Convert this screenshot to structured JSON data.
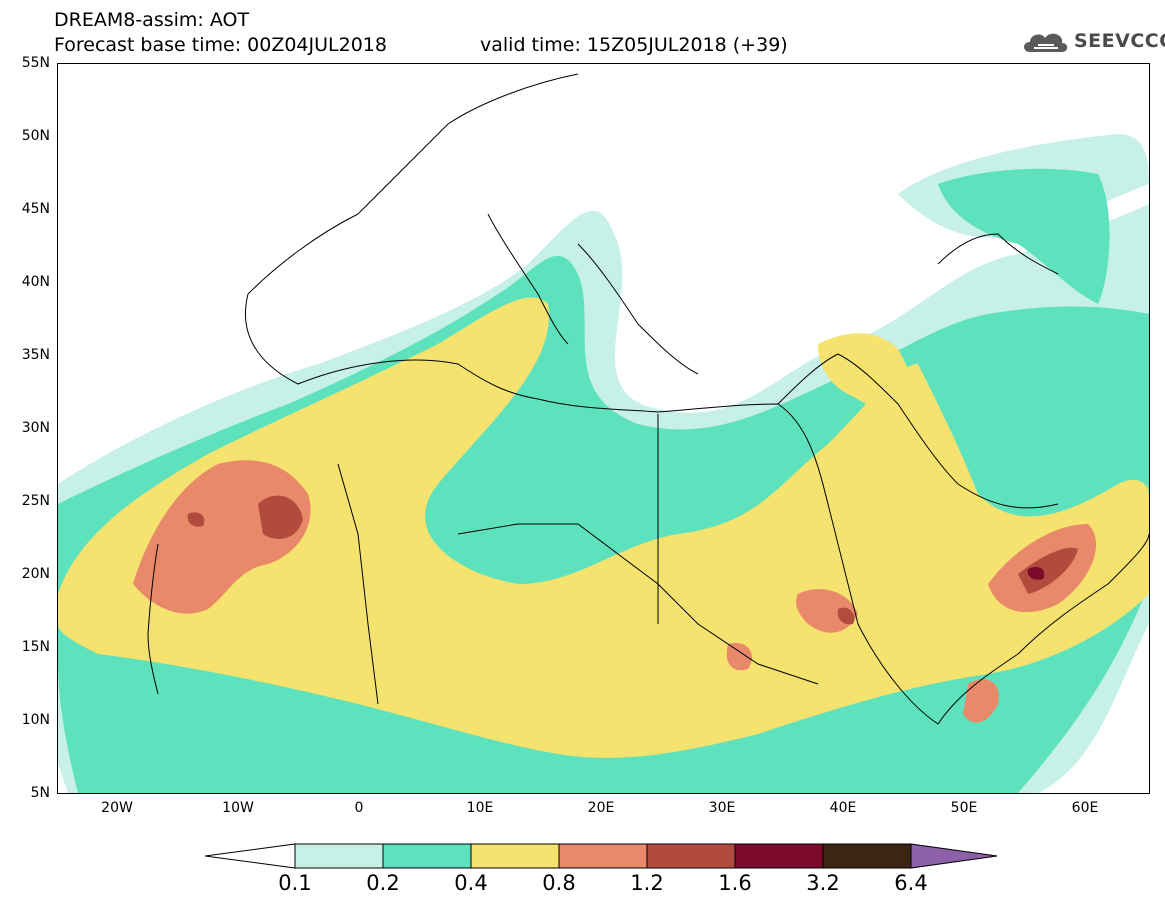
{
  "header": {
    "model_title": "DREAM8-assim: AOT",
    "forecast_base": "Forecast base time: 00Z04JUL2018",
    "valid_time": "valid time: 15Z05JUL2018 (+39)"
  },
  "logo": {
    "text": "SEEVCCC",
    "icon": "cloud-icon"
  },
  "axes": {
    "lat_ticks": [
      "55N",
      "50N",
      "45N",
      "40N",
      "35N",
      "30N",
      "25N",
      "20N",
      "15N",
      "10N",
      "5N"
    ],
    "lon_ticks": [
      "20W",
      "10W",
      "0",
      "10E",
      "20E",
      "30E",
      "40E",
      "50E",
      "60E"
    ]
  },
  "colorbar": {
    "labels": [
      "0.1",
      "0.2",
      "0.4",
      "0.8",
      "1.2",
      "1.6",
      "3.2",
      "6.4"
    ],
    "colors": [
      "#ffffff",
      "#c7f0e8",
      "#5ee2bd",
      "#f5e26f",
      "#e8896a",
      "#b14b3e",
      "#7c0a2b",
      "#3d2515",
      "#8e60aa"
    ]
  },
  "map": {
    "extent": {
      "lon_min": -25,
      "lon_max": 65,
      "lat_min": 5,
      "lat_max": 55
    },
    "grid": "none",
    "field": "AOT"
  }
}
